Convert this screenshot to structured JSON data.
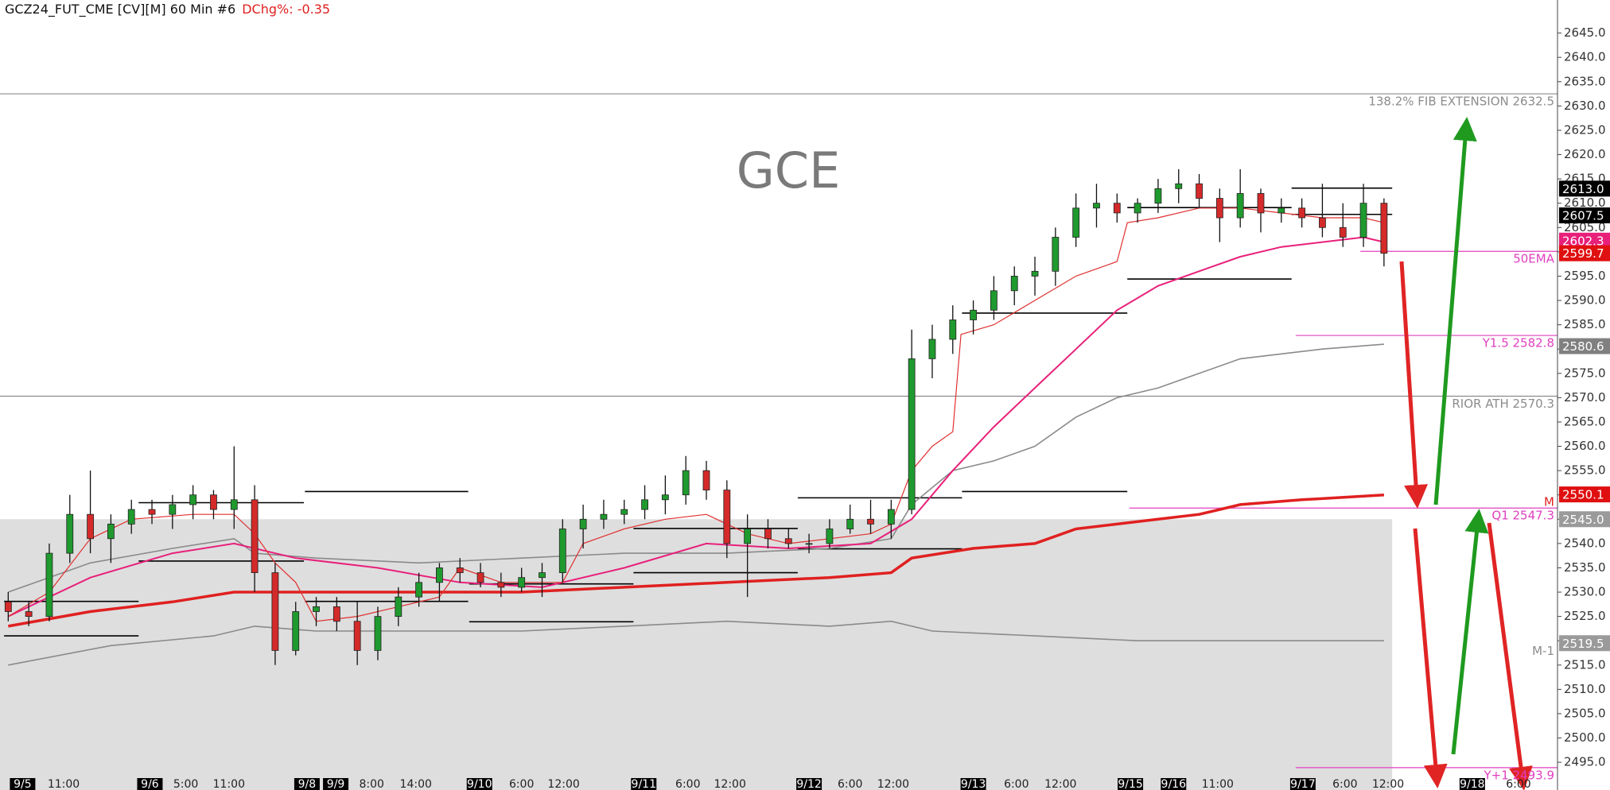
{
  "chart_data": {
    "type": "candlestick",
    "title": "GCZ24_FUT_CME [CV][M]  60 Min  #6",
    "change_label": "DChg%: -0.35",
    "watermark": "GCE",
    "up_color": "#1f9a2e",
    "down_color": "#d42a2a",
    "xlim": [
      -0.4,
      75.45
    ],
    "ylim": [
      2489.3,
      2651.8
    ],
    "yticks": [
      {
        "value": 2495,
        "label": "2495.0"
      },
      {
        "value": 2500,
        "label": "2500.0"
      },
      {
        "value": 2505,
        "label": "2505.0"
      },
      {
        "value": 2510,
        "label": "2510.0"
      },
      {
        "value": 2515,
        "label": "2515.0"
      },
      {
        "value": 2520,
        "label": "2520.0"
      },
      {
        "value": 2525,
        "label": "2525.0"
      },
      {
        "value": 2530,
        "label": "2530.0"
      },
      {
        "value": 2535,
        "label": "2535.0"
      },
      {
        "value": 2540,
        "label": "2540.0"
      },
      {
        "value": 2545,
        "label": "2545.0"
      },
      {
        "value": 2550,
        "label": "2550.0"
      },
      {
        "value": 2555,
        "label": "2555.0"
      },
      {
        "value": 2560,
        "label": "2560.0"
      },
      {
        "value": 2565,
        "label": "2565.0"
      },
      {
        "value": 2570,
        "label": "2570.0"
      },
      {
        "value": 2575,
        "label": "2575.0"
      },
      {
        "value": 2580,
        "label": "2580.0"
      },
      {
        "value": 2585,
        "label": "2585.0"
      },
      {
        "value": 2590,
        "label": "2590.0"
      },
      {
        "value": 2595,
        "label": "2595.0"
      },
      {
        "value": 2600,
        "label": "2600.0"
      },
      {
        "value": 2605,
        "label": "2605.0"
      },
      {
        "value": 2610,
        "label": "2610.0"
      },
      {
        "value": 2615,
        "label": "2615.0"
      },
      {
        "value": 2620,
        "label": "2620.0"
      },
      {
        "value": 2625,
        "label": "2625.0"
      },
      {
        "value": 2630,
        "label": "2630.0"
      },
      {
        "value": 2635,
        "label": "2635.0"
      },
      {
        "value": 2640,
        "label": "2640.0"
      },
      {
        "value": 2645,
        "label": "2645.0"
      }
    ],
    "xticks": [
      {
        "value": 0.7,
        "label": "9/5"
      },
      {
        "value": 2.7,
        "label": "11:00"
      },
      {
        "value": 6.9,
        "label": "9/6"
      },
      {
        "value": 8.65,
        "label": "5:00"
      },
      {
        "value": 10.75,
        "label": "11:00"
      },
      {
        "value": 14.55,
        "label": "9/8"
      },
      {
        "value": 15.95,
        "label": "9/9"
      },
      {
        "value": 17.7,
        "label": "8:00"
      },
      {
        "value": 19.85,
        "label": "14:00"
      },
      {
        "value": 22.95,
        "label": "9/10"
      },
      {
        "value": 25,
        "label": "6:00"
      },
      {
        "value": 27.05,
        "label": "12:00"
      },
      {
        "value": 30.95,
        "label": "9/11"
      },
      {
        "value": 33.1,
        "label": "6:00"
      },
      {
        "value": 35.15,
        "label": "12:00"
      },
      {
        "value": 39,
        "label": "9/12"
      },
      {
        "value": 41,
        "label": "6:00"
      },
      {
        "value": 43.1,
        "label": "12:00"
      },
      {
        "value": 47,
        "label": "9/13"
      },
      {
        "value": 49.1,
        "label": "6:00"
      },
      {
        "value": 51.25,
        "label": "12:00"
      },
      {
        "value": 54.65,
        "label": "9/15"
      },
      {
        "value": 56.75,
        "label": "9/16"
      },
      {
        "value": 58.9,
        "label": "11:00"
      },
      {
        "value": 63.05,
        "label": "9/17"
      },
      {
        "value": 65.1,
        "label": "6:00"
      },
      {
        "value": 67.2,
        "label": "12:00"
      },
      {
        "value": 71.3,
        "label": "9/18"
      },
      {
        "value": 73.55,
        "label": "6:00"
      }
    ],
    "value_area": {
      "top": 2545,
      "x_to": 67.4,
      "color": "#dedede"
    },
    "ohlc": [
      [
        2528,
        2530,
        2524,
        2526
      ],
      [
        2526,
        2528,
        2523,
        2525
      ],
      [
        2525,
        2540,
        2524,
        2538
      ],
      [
        2538,
        2550,
        2536,
        2546
      ],
      [
        2546,
        2555,
        2538,
        2541
      ],
      [
        2541,
        2546,
        2536,
        2544
      ],
      [
        2544,
        2549,
        2542,
        2547
      ],
      [
        2547,
        2549,
        2544,
        2546
      ],
      [
        2546,
        2550,
        2543,
        2548
      ],
      [
        2548,
        2552,
        2545,
        2550
      ],
      [
        2550,
        2551,
        2545,
        2547
      ],
      [
        2547,
        2560,
        2543,
        2549
      ],
      [
        2549,
        2552,
        2530,
        2534
      ],
      [
        2534,
        2536,
        2515,
        2518
      ],
      [
        2518,
        2528,
        2517,
        2526
      ],
      [
        2526,
        2529,
        2523,
        2527
      ],
      [
        2527,
        2529,
        2522,
        2524
      ],
      [
        2524,
        2528,
        2515,
        2518
      ],
      [
        2518,
        2527,
        2516,
        2525
      ],
      [
        2525,
        2531,
        2523,
        2529
      ],
      [
        2529,
        2534,
        2527,
        2532
      ],
      [
        2532,
        2536,
        2528,
        2535
      ],
      [
        2535,
        2537,
        2532,
        2534
      ],
      [
        2534,
        2536,
        2531,
        2532
      ],
      [
        2532,
        2534,
        2529,
        2531
      ],
      [
        2531,
        2535,
        2530,
        2533
      ],
      [
        2533,
        2536,
        2529,
        2534
      ],
      [
        2534,
        2545,
        2532,
        2543
      ],
      [
        2543,
        2548,
        2539,
        2545
      ],
      [
        2545,
        2549,
        2543,
        2546
      ],
      [
        2546,
        2549,
        2544,
        2547
      ],
      [
        2547,
        2552,
        2545,
        2549
      ],
      [
        2549,
        2554,
        2546,
        2550
      ],
      [
        2550,
        2558,
        2548,
        2555
      ],
      [
        2555,
        2557,
        2549,
        2551
      ],
      [
        2551,
        2553,
        2537,
        2540
      ],
      [
        2540,
        2546,
        2529,
        2543
      ],
      [
        2543,
        2545,
        2539,
        2541
      ],
      [
        2541,
        2543,
        2539,
        2540
      ],
      [
        2540,
        2542,
        2538,
        2540
      ],
      [
        2540,
        2545,
        2539,
        2543
      ],
      [
        2543,
        2548,
        2542,
        2545
      ],
      [
        2545,
        2549,
        2542,
        2544
      ],
      [
        2544,
        2549,
        2541,
        2547
      ],
      [
        2547,
        2584,
        2546,
        2578
      ],
      [
        2578,
        2585,
        2574,
        2582
      ],
      [
        2582,
        2589,
        2579,
        2586
      ],
      [
        2586,
        2590,
        2583,
        2588
      ],
      [
        2588,
        2595,
        2586,
        2592
      ],
      [
        2592,
        2597,
        2589,
        2595
      ],
      [
        2595,
        2599,
        2591,
        2596
      ],
      [
        2596,
        2605,
        2593,
        2603
      ],
      [
        2603,
        2612,
        2601,
        2609
      ],
      [
        2609,
        2614,
        2605,
        2610
      ],
      [
        2610,
        2612,
        2606,
        2608
      ],
      [
        2608,
        2611,
        2606,
        2610
      ],
      [
        2610,
        2615,
        2608,
        2613
      ],
      [
        2613,
        2617,
        2610,
        2614
      ],
      [
        2614,
        2616,
        2609,
        2611
      ],
      [
        2611,
        2613,
        2602,
        2607
      ],
      [
        2607,
        2617,
        2605,
        2612
      ],
      [
        2612,
        2613,
        2604,
        2608
      ],
      [
        2608,
        2611,
        2606,
        2609
      ],
      [
        2609,
        2611,
        2605,
        2607
      ],
      [
        2607,
        2614,
        2603,
        2605
      ],
      [
        2605,
        2610,
        2601,
        2603
      ],
      [
        2603,
        2614,
        2601,
        2610
      ],
      [
        2610,
        2611,
        2597,
        2599.7
      ]
    ],
    "lines": [
      {
        "color": "#8a8a8a",
        "width": 1.6,
        "x": [
          0,
          4,
          8,
          11,
          12,
          15,
          20,
          25,
          30,
          35,
          40,
          43,
          44,
          46,
          48,
          50,
          52,
          54,
          56,
          58,
          60,
          62,
          64,
          67
        ],
        "values": [
          2530,
          2536,
          2539,
          2541,
          2538,
          2537,
          2536,
          2537,
          2538,
          2538,
          2539,
          2541,
          2548,
          2555,
          2557,
          2560,
          2566,
          2570,
          2572,
          2575,
          2578,
          2579,
          2580,
          2581
        ]
      },
      {
        "color": "#8a8a8a",
        "width": 1.6,
        "x": [
          0,
          5,
          10,
          12,
          15,
          20,
          25,
          30,
          35,
          40,
          43,
          45,
          50,
          55,
          60,
          65,
          67
        ],
        "values": [
          2515,
          2519,
          2521,
          2523,
          2522,
          2522,
          2522,
          2523,
          2524,
          2523,
          2524,
          2522,
          2521,
          2520,
          2520,
          2520,
          2520
        ]
      },
      {
        "color": "#e02020",
        "width": 3.5,
        "x": [
          0,
          4,
          8,
          11,
          14,
          20,
          25,
          30,
          35,
          40,
          43,
          44,
          47,
          50,
          52,
          54,
          56,
          58,
          60,
          63,
          67
        ],
        "values": [
          2523,
          2526,
          2528,
          2530,
          2530,
          2530,
          2530,
          2531,
          2532,
          2533,
          2534,
          2537,
          2539,
          2540,
          2543,
          2544,
          2545,
          2546,
          2548,
          2549,
          2550
        ]
      },
      {
        "color": "#e8207a",
        "width": 2,
        "x": [
          0,
          4,
          8,
          11,
          14,
          18,
          22,
          26,
          30,
          34,
          38,
          42,
          44,
          46,
          48,
          50,
          52,
          54,
          56,
          58,
          60,
          62,
          64,
          66,
          67
        ],
        "values": [
          2525,
          2533,
          2538,
          2540,
          2537,
          2535,
          2532,
          2531,
          2535,
          2540,
          2539,
          2540,
          2545,
          2555,
          2564,
          2572,
          2580,
          2588,
          2593,
          2596,
          2599,
          2601,
          2602,
          2603,
          2602
        ]
      },
      {
        "color": "#e03030",
        "width": 1.2,
        "x": [
          0,
          2,
          4,
          6,
          9,
          11,
          12,
          13,
          14,
          15,
          17,
          19,
          21,
          22,
          24,
          26,
          27,
          28,
          30,
          32,
          34,
          36,
          37,
          38,
          40,
          42,
          43,
          44,
          45,
          46,
          46.4,
          48,
          50,
          52,
          54,
          54.5,
          56,
          58,
          60,
          62,
          64,
          66,
          67
        ],
        "values": [
          2525,
          2530,
          2541,
          2545,
          2546,
          2546,
          2542,
          2536,
          2532,
          2524,
          2525,
          2527,
          2529,
          2535,
          2532,
          2532,
          2532,
          2540,
          2543,
          2545,
          2546,
          2542,
          2541,
          2540,
          2541,
          2542,
          2544,
          2555,
          2560,
          2563,
          2583,
          2585,
          2590,
          2595,
          2598,
          2606,
          2607,
          2609,
          2609,
          2608,
          2607,
          2607,
          2606
        ]
      }
    ],
    "session_levels": [
      {
        "x": [
          -0.2,
          6.35
        ],
        "value": 2521.0
      },
      {
        "x": [
          -0.2,
          6.35
        ],
        "value": 2528.1
      },
      {
        "x": [
          6.35,
          14.4
        ],
        "value": 2548.4
      },
      {
        "x": [
          6.35,
          14.4
        ],
        "value": 2536.4
      },
      {
        "x": [
          14.45,
          22.4
        ],
        "value": 2550.7
      },
      {
        "x": [
          14.45,
          22.4
        ],
        "value": 2528.1
      },
      {
        "x": [
          22.45,
          30.45
        ],
        "value": 2523.9
      },
      {
        "x": [
          22.45,
          30.45
        ],
        "value": 2531.7
      },
      {
        "x": [
          30.45,
          38.45
        ],
        "value": 2543.1
      },
      {
        "x": [
          30.45,
          38.45
        ],
        "value": 2534.0
      },
      {
        "x": [
          38.45,
          46.45
        ],
        "value": 2549.4
      },
      {
        "x": [
          38.45,
          46.45
        ],
        "value": 2538.9
      },
      {
        "x": [
          46.45,
          54.5
        ],
        "value": 2550.7
      },
      {
        "x": [
          46.45,
          54.5
        ],
        "value": 2587.4
      },
      {
        "x": [
          54.5,
          62.5
        ],
        "value": 2609.1
      },
      {
        "x": [
          54.5,
          62.5
        ],
        "value": 2594.4
      },
      {
        "x": [
          62.5,
          67.4
        ],
        "value": 2613.1
      },
      {
        "x": [
          62.5,
          67.4
        ],
        "value": 2607.7
      }
    ],
    "levels": [
      {
        "value": 2632.5,
        "label": "138.2% FIB EXTENSION 2632.5",
        "color": "#8c8c8c",
        "x_from": -0.4
      },
      {
        "value": 2570.3,
        "label": "RIOR ATH 2570.3",
        "color": "#8c8c8c",
        "x_from": -0.4
      },
      {
        "value": 2600.1,
        "label": "50EMA",
        "color": "#e040c0",
        "x_from": 65.85
      },
      {
        "value": 2582.8,
        "label": "Y1.5  2582.8",
        "color": "#e040c0",
        "x_from": 62.7
      },
      {
        "value": 2547.3,
        "label": "Q1  2547.3",
        "color": "#e040c0",
        "x_from": 54.6
      },
      {
        "value": 2550.1,
        "label": "M",
        "color": "#e02020"
      },
      {
        "value": 2519.5,
        "label": "M-1",
        "color": "#8c8c8c"
      },
      {
        "value": 2493.9,
        "label": "Y+1  2493.9",
        "color": "#e040c0",
        "x_from": 62.7
      }
    ],
    "price_tags": [
      {
        "value": 2613.0,
        "label": "2613.0",
        "color": "#000000"
      },
      {
        "value": 2607.5,
        "label": "2607.5",
        "color": "#000000"
      },
      {
        "value": 2602.3,
        "label": "2602.3",
        "color": "#e8207a"
      },
      {
        "value": 2599.7,
        "label": "2599.7",
        "color": "#e01010"
      },
      {
        "value": 2580.6,
        "label": "2580.6",
        "color": "#808080"
      },
      {
        "value": 2550.1,
        "label": "2550.1",
        "color": "#e01010"
      },
      {
        "value": 2545.0,
        "label": "2545.0",
        "color": "#9a9a9a"
      },
      {
        "value": 2519.5,
        "label": "2519.5",
        "color": "#9a9a9a"
      }
    ]
  }
}
